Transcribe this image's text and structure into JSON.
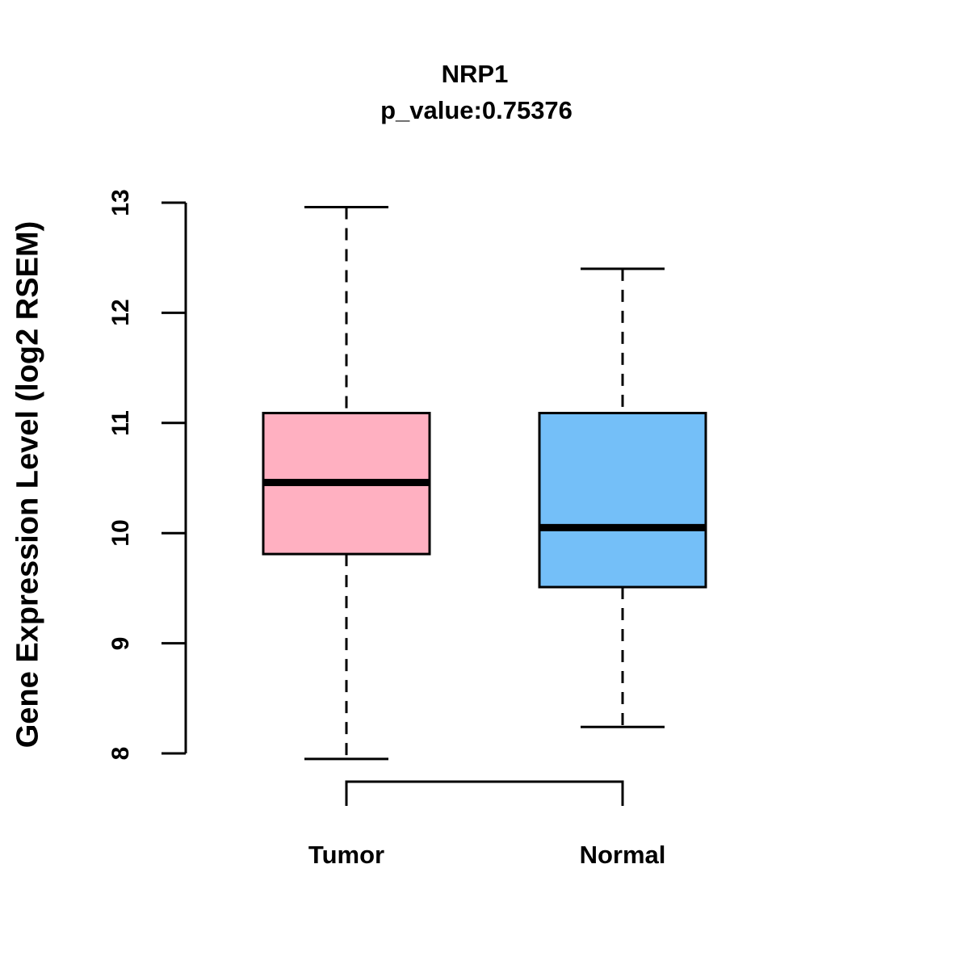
{
  "chart_data": {
    "type": "boxplot",
    "title": "NRP1",
    "subtitle": "p_value:0.75376",
    "ylabel": "Gene Expression Level (log2 RSEM)",
    "xlabel": "",
    "categories": [
      "Tumor",
      "Normal"
    ],
    "yticks": [
      8,
      9,
      10,
      11,
      12,
      13
    ],
    "ylim": [
      8,
      13
    ],
    "grid": false,
    "legend": "none",
    "stroke_color": "#000000",
    "background_color": "#ffffff",
    "series": [
      {
        "name": "Tumor",
        "color": "#FFB0C1",
        "min": 7.95,
        "q1": 9.81,
        "median": 10.46,
        "q3": 11.09,
        "max": 12.96
      },
      {
        "name": "Normal",
        "color": "#74BFF8",
        "min": 8.24,
        "q1": 9.51,
        "median": 10.05,
        "q3": 11.09,
        "max": 12.4
      }
    ]
  }
}
